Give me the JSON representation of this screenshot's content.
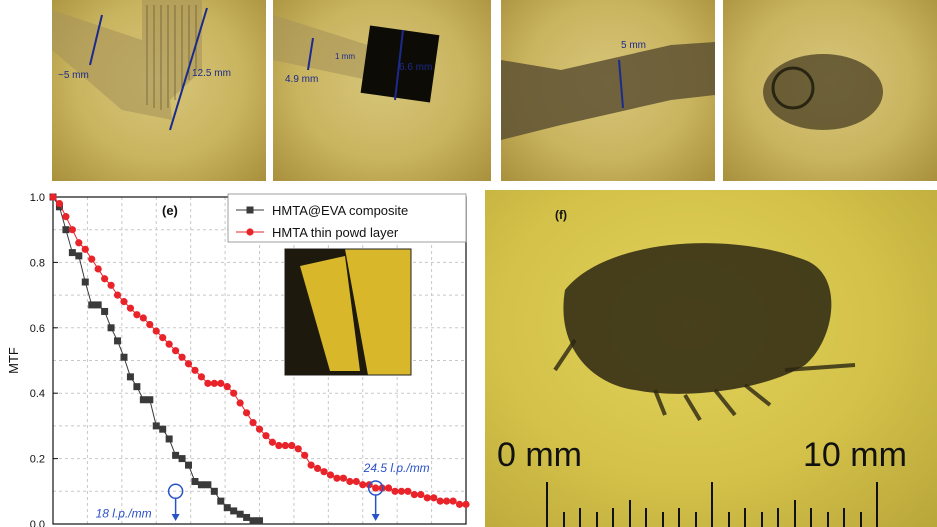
{
  "panels": {
    "a": {
      "dims": [
        "~5 mm",
        "12.5 mm"
      ]
    },
    "b": {
      "dims": [
        "4.9 mm",
        "1 mm",
        "6.6 mm"
      ]
    },
    "c": {
      "dims": [
        "5 mm"
      ]
    },
    "f": {
      "letter": "(f)",
      "ruler_left": "0 mm",
      "ruler_right": "10 mm"
    }
  },
  "colors": {
    "series_composite": "#3a3a3a",
    "series_powder": "#e8232a",
    "annotation": "#2a52c8",
    "grid": "#c8c8c8"
  },
  "chart_data": {
    "type": "line",
    "panel_letter": "(e)",
    "xlabel": "",
    "ylabel": "MTF",
    "ylim": [
      0,
      1.0
    ],
    "yticks": [
      "0.0",
      "0.2",
      "0.4",
      "0.6",
      "0.8",
      "1.0"
    ],
    "grid": true,
    "legend_placement": "top-right",
    "series": [
      {
        "name": "HMTA@EVA composite",
        "marker": "square",
        "x": [
          0,
          1,
          2,
          3,
          4,
          5,
          6,
          7,
          8,
          9,
          10,
          11,
          12,
          13,
          14,
          15,
          16,
          17,
          18,
          19,
          20,
          21,
          22,
          23,
          24,
          25,
          26,
          27,
          28,
          29,
          30,
          31,
          32
        ],
        "y": [
          1.0,
          0.97,
          0.9,
          0.83,
          0.82,
          0.74,
          0.67,
          0.67,
          0.65,
          0.6,
          0.56,
          0.51,
          0.45,
          0.42,
          0.38,
          0.38,
          0.3,
          0.29,
          0.26,
          0.21,
          0.2,
          0.18,
          0.13,
          0.12,
          0.12,
          0.1,
          0.07,
          0.05,
          0.04,
          0.03,
          0.02,
          0.01,
          0.01
        ]
      },
      {
        "name": "HMTA thin powd layer",
        "marker": "circle",
        "x": [
          0,
          1,
          2,
          3,
          4,
          5,
          6,
          7,
          8,
          9,
          10,
          11,
          12,
          13,
          14,
          15,
          16,
          17,
          18,
          19,
          20,
          21,
          22,
          23,
          24,
          25,
          26,
          27,
          28,
          29,
          30,
          31,
          32,
          33,
          34,
          35,
          36,
          37,
          38,
          39,
          40,
          41,
          42,
          43,
          44,
          45,
          46,
          47,
          48,
          49,
          50,
          51,
          52,
          53,
          54,
          55,
          56,
          57,
          58,
          59,
          60,
          61,
          62,
          63,
          64
        ],
        "y": [
          1.0,
          0.98,
          0.94,
          0.9,
          0.86,
          0.84,
          0.81,
          0.78,
          0.75,
          0.73,
          0.7,
          0.68,
          0.66,
          0.64,
          0.63,
          0.61,
          0.59,
          0.57,
          0.55,
          0.53,
          0.51,
          0.49,
          0.47,
          0.45,
          0.43,
          0.43,
          0.43,
          0.42,
          0.4,
          0.37,
          0.34,
          0.31,
          0.29,
          0.27,
          0.25,
          0.24,
          0.24,
          0.24,
          0.23,
          0.21,
          0.18,
          0.17,
          0.16,
          0.15,
          0.14,
          0.14,
          0.13,
          0.13,
          0.12,
          0.12,
          0.11,
          0.11,
          0.11,
          0.1,
          0.1,
          0.1,
          0.09,
          0.09,
          0.08,
          0.08,
          0.07,
          0.07,
          0.07,
          0.06,
          0.06
        ]
      }
    ],
    "annotations": [
      {
        "text": "18 l.p./mm",
        "series": 0,
        "x": 19,
        "y": 0.1
      },
      {
        "text": "24.5 l.p./mm",
        "series": 1,
        "x": 50,
        "y": 0.11
      }
    ]
  }
}
